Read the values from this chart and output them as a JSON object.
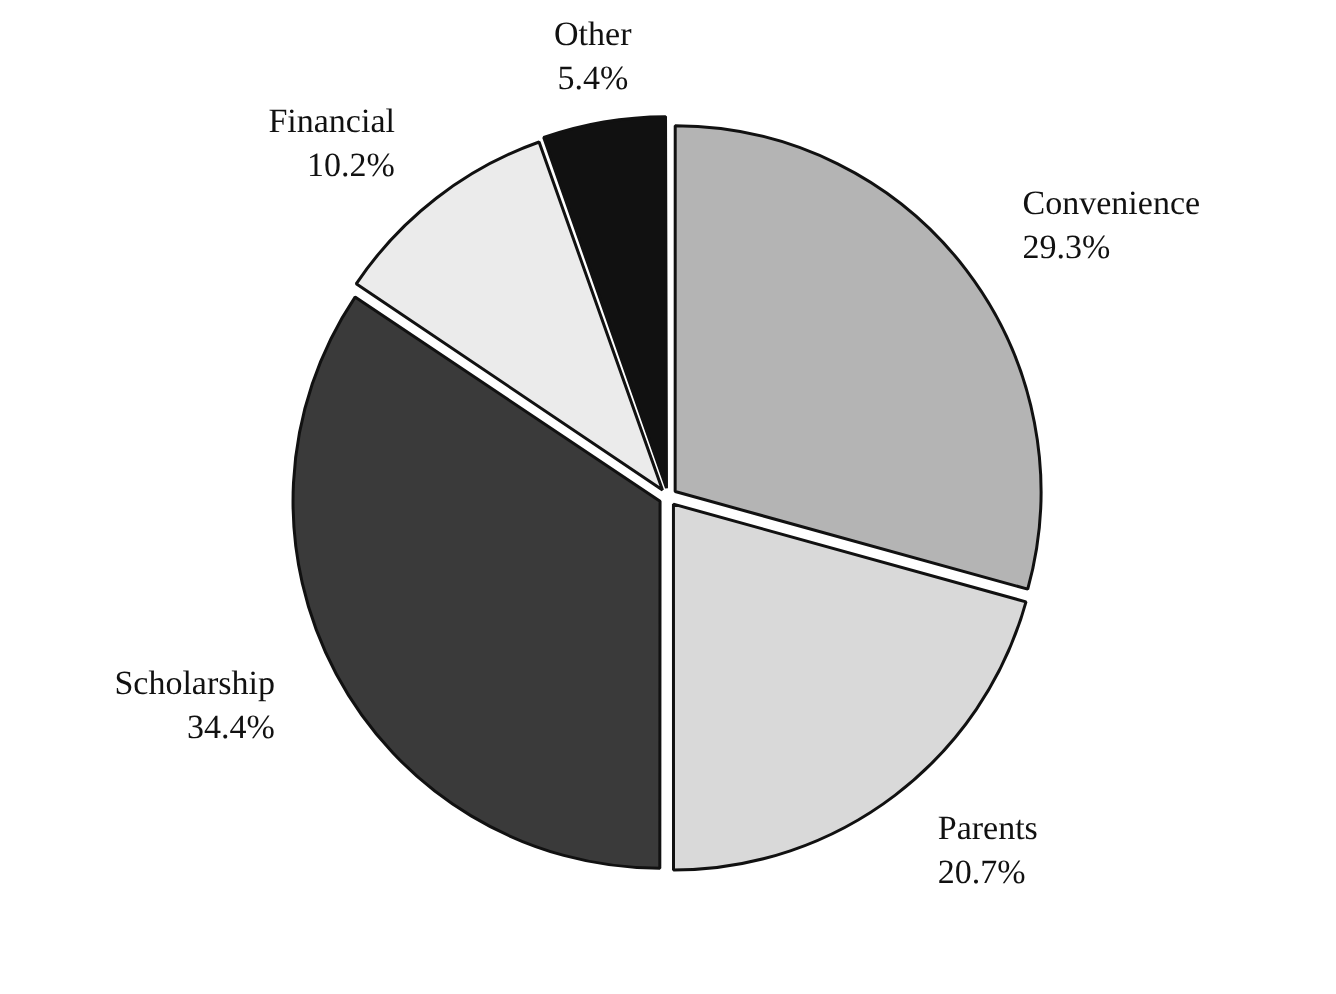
{
  "chart_data": {
    "type": "pie",
    "categories": [
      "Convenience",
      "Parents",
      "Scholarship",
      "Financial",
      "Other"
    ],
    "values": [
      29.3,
      20.7,
      34.4,
      10.2,
      5.4
    ],
    "value_labels": [
      "29.3%",
      "20.7%",
      "34.4%",
      "10.2%",
      "5.4%"
    ],
    "colors": [
      "#b4b4b4",
      "#d9d9d9",
      "#3a3a3a",
      "#ebebeb",
      "#111111"
    ],
    "legend": false
  }
}
